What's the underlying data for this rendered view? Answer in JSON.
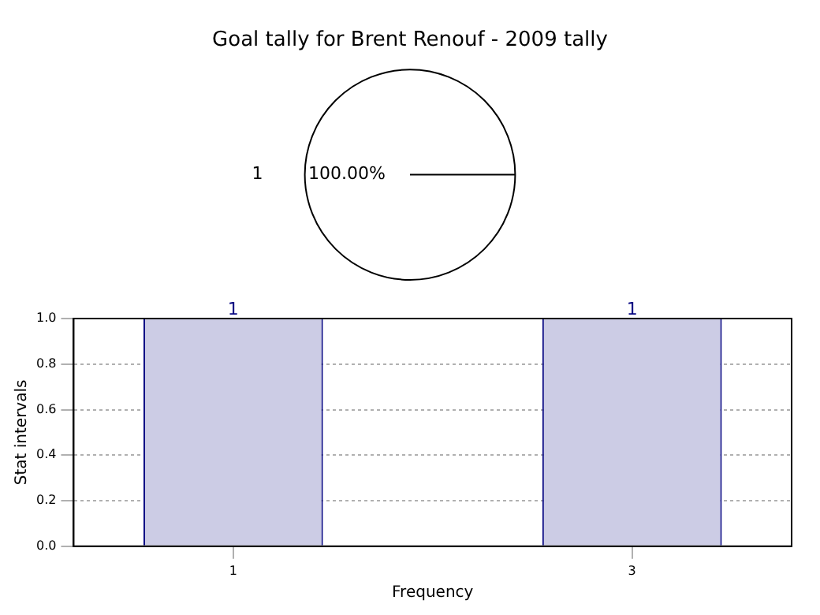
{
  "chart_data": [
    {
      "type": "pie",
      "title": "Goal tally for Brent Renouf - 2009 tally",
      "categories": [
        "1"
      ],
      "values": [
        100
      ],
      "colors": [
        "#ffffff"
      ],
      "value_labels": [
        "100.00%"
      ],
      "legend": false
    },
    {
      "type": "bar",
      "x": [
        1,
        3
      ],
      "values": [
        1,
        1
      ],
      "color": "#cccce5",
      "xlabel": "Frequency",
      "ylabel": "Stat intervals",
      "xlim": [
        0.2,
        3.8
      ],
      "xticks": [
        1,
        3
      ],
      "ylim": [
        0,
        1
      ],
      "yticks": [
        {
          "value": 0,
          "label": "0.0"
        },
        0.2,
        0.4,
        0.6,
        0.8,
        {
          "value": 1,
          "label": "1.0"
        }
      ],
      "grid": true,
      "data_labels": true,
      "legend": false
    }
  ]
}
